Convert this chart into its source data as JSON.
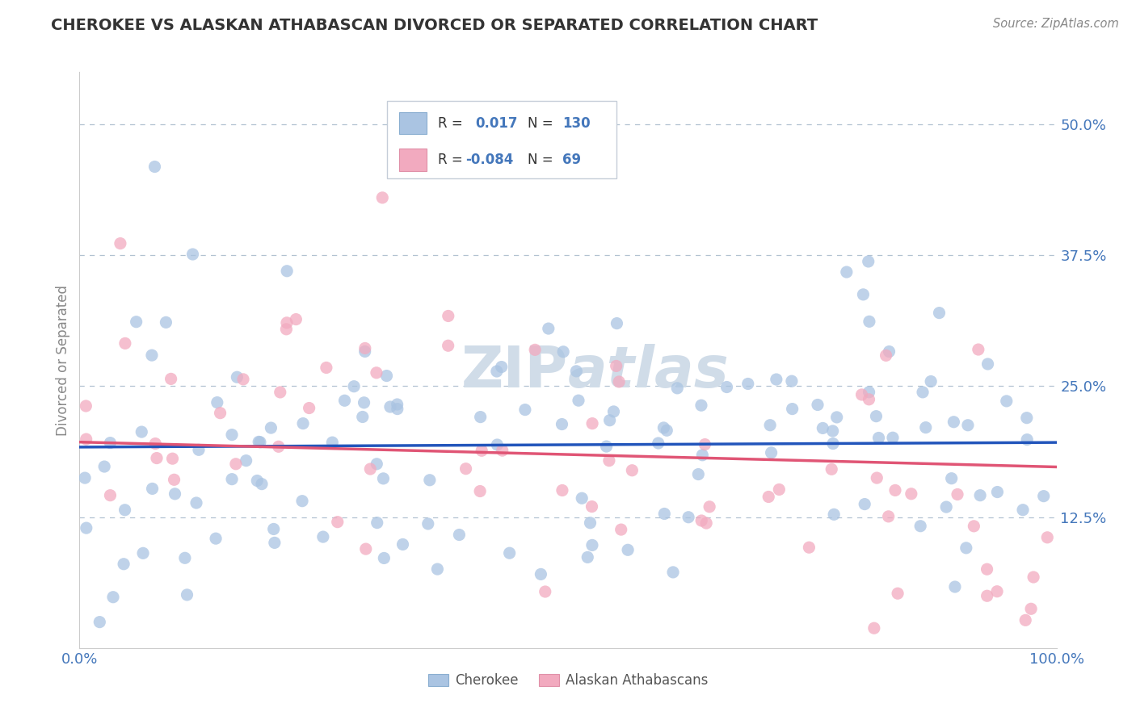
{
  "title": "CHEROKEE VS ALASKAN ATHABASCAN DIVORCED OR SEPARATED CORRELATION CHART",
  "source": "Source: ZipAtlas.com",
  "ylabel": "Divorced or Separated",
  "xlim": [
    0.0,
    1.0
  ],
  "ylim": [
    0.0,
    0.55
  ],
  "yticks": [
    0.125,
    0.25,
    0.375,
    0.5
  ],
  "ytick_labels": [
    "12.5%",
    "25.0%",
    "37.5%",
    "50.0%"
  ],
  "xticks": [
    0.0,
    1.0
  ],
  "xtick_labels": [
    "0.0%",
    "100.0%"
  ],
  "cherokee_color": "#aac4e2",
  "athabascan_color": "#f2aabf",
  "cherokee_line_color": "#2255bb",
  "athabascan_line_color": "#e05575",
  "cherokee_R": 0.017,
  "cherokee_N": 130,
  "athabascan_R": -0.084,
  "athabascan_N": 69,
  "background_color": "#ffffff",
  "grid_color": "#aabccc",
  "title_color": "#333333",
  "tick_label_color": "#4477bb",
  "ylabel_color": "#888888",
  "source_color": "#888888",
  "legend_text_color": "#333333",
  "legend_num_color": "#4477bb",
  "watermark_color": "#d0dce8",
  "bottom_legend_color": "#555555"
}
